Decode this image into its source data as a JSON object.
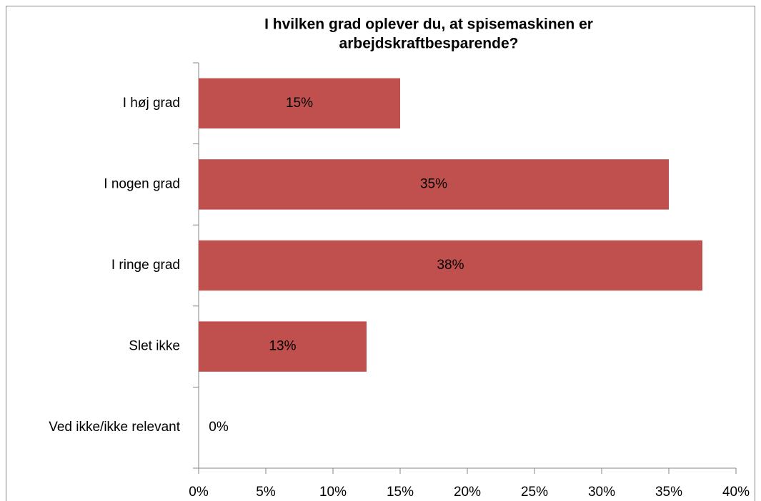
{
  "chart_data": {
    "type": "bar",
    "orientation": "horizontal",
    "title": [
      "I hvilken grad oplever du, at spisemaskinen er",
      "arbejdskraftbesparende?"
    ],
    "categories": [
      "I høj grad",
      "I nogen grad",
      "I ringe grad",
      "Slet ikke",
      "Ved ikke/ikke relevant"
    ],
    "values": [
      15,
      35,
      37.5,
      12.5,
      0
    ],
    "value_labels": [
      "15%",
      "35%",
      "38%",
      "13%",
      "0%"
    ],
    "color": "#c0504d",
    "xlim": [
      0,
      40
    ],
    "xticks": [
      {
        "value": 0,
        "label": "0%"
      },
      {
        "value": 5,
        "label": "5%"
      },
      {
        "value": 10,
        "label": "10%"
      },
      {
        "value": 15,
        "label": "15%"
      },
      {
        "value": 20,
        "label": "20%"
      },
      {
        "value": 25,
        "label": "25%"
      },
      {
        "value": 30,
        "label": "30%"
      },
      {
        "value": 35,
        "label": "35%"
      },
      {
        "value": 40,
        "label": "40%"
      }
    ],
    "grid": false
  }
}
